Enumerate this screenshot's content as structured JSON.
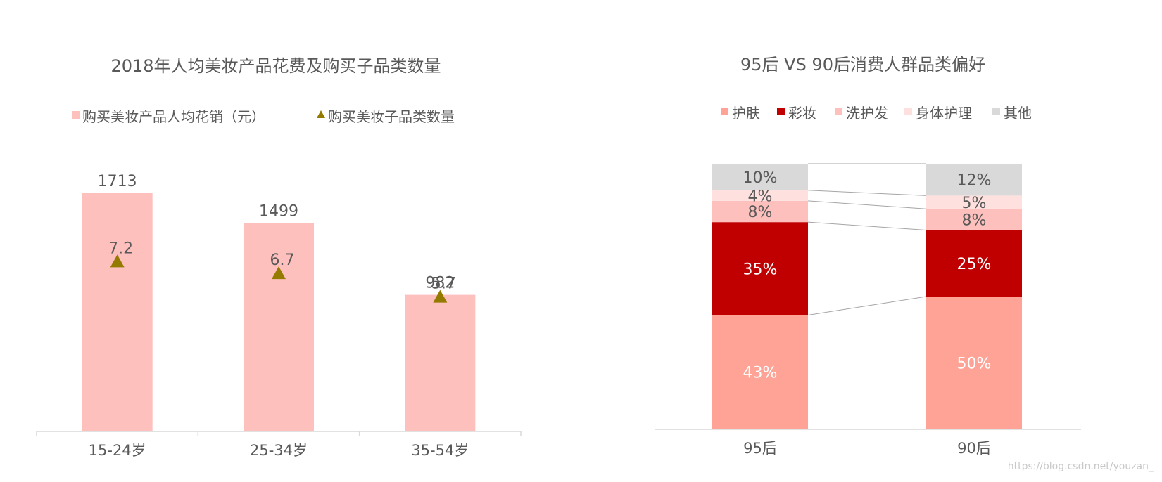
{
  "chart_data": [
    {
      "type": "bar",
      "title": "2018年人均美妆产品花费及购买子品类数量",
      "legend_position": "top",
      "categories": [
        "15-24岁",
        "25-34岁",
        "35-54岁"
      ],
      "series": [
        {
          "name": "购买美妆产品人均花销（元）",
          "kind": "bar",
          "values": [
            1713,
            1499,
            982
          ],
          "labels": [
            "1713",
            "1499",
            "982"
          ],
          "color": "#fec0bd"
        },
        {
          "name": "购买美妆子品类数量",
          "kind": "marker-triangle",
          "values": [
            7.2,
            6.7,
            5.7
          ],
          "labels": [
            "7.2",
            "6.7",
            "5.7"
          ],
          "color": "#957a00"
        }
      ],
      "ylim": [
        0,
        1950
      ],
      "secondary_ylim": [
        0,
        11.5
      ],
      "grid": false
    },
    {
      "type": "bar",
      "stacked": "percent",
      "title": "95后 VS 90后消费人群品类偏好",
      "legend_position": "top",
      "categories": [
        "95后",
        "90后"
      ],
      "series": [
        {
          "name": "护肤",
          "values": [
            43,
            50
          ],
          "labels": [
            "43%",
            "50%"
          ],
          "color": "#fea396",
          "label_color": "#ffffff"
        },
        {
          "name": "彩妆",
          "values": [
            35,
            25
          ],
          "labels": [
            "35%",
            "25%"
          ],
          "color": "#c00000",
          "label_color": "#ffffff"
        },
        {
          "name": "洗护发",
          "values": [
            8,
            8
          ],
          "labels": [
            "8%",
            "8%"
          ],
          "color": "#fec0bd",
          "label_color": "#595959"
        },
        {
          "name": "身体护理",
          "values": [
            4,
            5
          ],
          "labels": [
            "4%",
            "5%"
          ],
          "color": "#fee0df",
          "label_color": "#595959"
        },
        {
          "name": "其他",
          "values": [
            10,
            12
          ],
          "labels": [
            "10%",
            "12%"
          ],
          "color": "#d9d9d9",
          "label_color": "#595959"
        }
      ],
      "series_lines": true,
      "ylim": [
        0,
        100
      ],
      "grid": false
    }
  ],
  "watermark": "https://blog.csdn.net/youzan_"
}
